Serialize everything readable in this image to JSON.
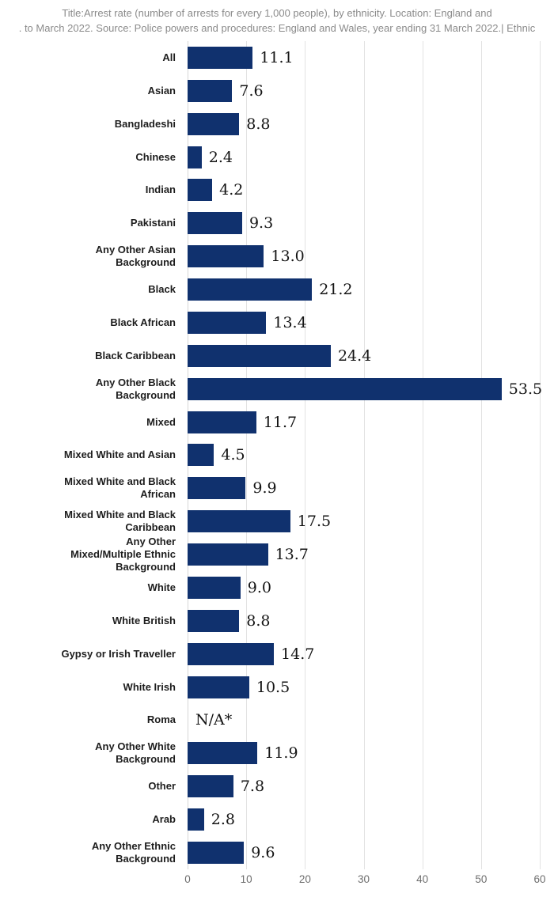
{
  "title": {
    "line1": "Title:Arrest rate (number of arrests for every 1,000 people), by ethnicity. Location: England and",
    "line2": ". to March 2022. Source: Police powers and procedures: England and Wales, year ending 31 March 2022.| Ethnic"
  },
  "chart_data": {
    "type": "bar",
    "orientation": "horizontal",
    "title": "Arrest rate (number of arrests for every 1,000 people), by ethnicity. Location: England and Wales. Source: Police powers and procedures: England and Wales, year ending 31 March 2022.",
    "xlabel": "",
    "ylabel": "",
    "xlim": [
      0,
      60
    ],
    "xticks": [
      0,
      10,
      20,
      30,
      40,
      50,
      60
    ],
    "grid": "vertical",
    "legend": "none",
    "categories": [
      "All",
      "Asian",
      "Bangladeshi",
      "Chinese",
      "Indian",
      "Pakistani",
      "Any Other Asian Background",
      "Black",
      "Black African",
      "Black Caribbean",
      "Any Other Black Background",
      "Mixed",
      "Mixed White and Asian",
      "Mixed White and Black African",
      "Mixed White and Black Caribbean",
      "Any Other Mixed/Multiple Ethnic Background",
      "White",
      "White British",
      "Gypsy or Irish Traveller",
      "White Irish",
      "Roma",
      "Any Other White Background",
      "Other",
      "Arab",
      "Any Other Ethnic Background"
    ],
    "label_lines": [
      "All",
      "Asian",
      "Bangladeshi",
      "Chinese",
      "Indian",
      "Pakistani",
      "Any Other Asian\nBackground",
      "Black",
      "Black African",
      "Black Caribbean",
      "Any Other Black\nBackground",
      "Mixed",
      "Mixed White and Asian",
      "Mixed White and Black\nAfrican",
      "Mixed White and Black\nCaribbean",
      "Any Other\nMixed/Multiple Ethnic\nBackground",
      "White",
      "White British",
      "Gypsy or Irish Traveller",
      "White Irish",
      "Roma",
      "Any Other White\nBackground",
      "Other",
      "Arab",
      "Any Other Ethnic\nBackground"
    ],
    "values": [
      11.1,
      7.6,
      8.8,
      2.4,
      4.2,
      9.3,
      13.0,
      21.2,
      13.4,
      24.4,
      53.5,
      11.7,
      4.5,
      9.9,
      17.5,
      13.7,
      9.0,
      8.8,
      14.7,
      10.5,
      null,
      11.9,
      7.8,
      2.8,
      9.6
    ],
    "value_labels": [
      "11.1",
      "7.6",
      "8.8",
      "2.4",
      "4.2",
      "9.3",
      "13.0",
      "21.2",
      "13.4",
      "24.4",
      "53.5",
      "11.7",
      "4.5",
      "9.9",
      "17.5",
      "13.7",
      "9.0",
      "8.8",
      "14.7",
      "10.5",
      "N/A*",
      "11.9",
      "7.8",
      "2.8",
      "9.6"
    ]
  },
  "colors": {
    "bar": "#10316e",
    "gridline": "#e2e2e2",
    "axis_line": "#d6d6d6",
    "title_text": "#8b8b8b",
    "tick_text": "#6e6e6e",
    "category_text": "#1d1d1d",
    "value_text": "#141414",
    "background": "#ffffff"
  }
}
